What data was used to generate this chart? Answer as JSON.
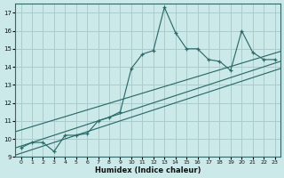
{
  "title": "",
  "xlabel": "Humidex (Indice chaleur)",
  "ylabel": "",
  "background_color": "#cce9e9",
  "grid_color": "#aacccc",
  "line_color": "#2d6b6b",
  "ylim": [
    9,
    17.5
  ],
  "xlim": [
    -0.5,
    23.5
  ],
  "yticks": [
    9,
    10,
    11,
    12,
    13,
    14,
    15,
    16,
    17
  ],
  "xticks": [
    0,
    1,
    2,
    3,
    4,
    5,
    6,
    7,
    8,
    9,
    10,
    11,
    12,
    13,
    14,
    15,
    16,
    17,
    18,
    19,
    20,
    21,
    22,
    23
  ],
  "data_x": [
    0,
    1,
    2,
    3,
    4,
    5,
    6,
    7,
    8,
    9,
    10,
    11,
    12,
    13,
    14,
    15,
    16,
    17,
    18,
    19,
    20,
    21,
    22,
    23
  ],
  "data_y": [
    9.5,
    9.8,
    9.8,
    9.3,
    10.2,
    10.2,
    10.3,
    11.0,
    11.2,
    11.5,
    13.9,
    14.7,
    14.9,
    17.3,
    15.9,
    15.0,
    15.0,
    14.4,
    14.3,
    13.8,
    16.0,
    14.8,
    14.4,
    14.4
  ],
  "reg_lines": [
    {
      "x0": -0.5,
      "x1": 23.5,
      "y0": 9.1,
      "y1": 13.9
    },
    {
      "x0": -0.5,
      "x1": 23.5,
      "y0": 9.5,
      "y1": 14.3
    },
    {
      "x0": -0.5,
      "x1": 23.5,
      "y0": 10.4,
      "y1": 14.85
    }
  ]
}
